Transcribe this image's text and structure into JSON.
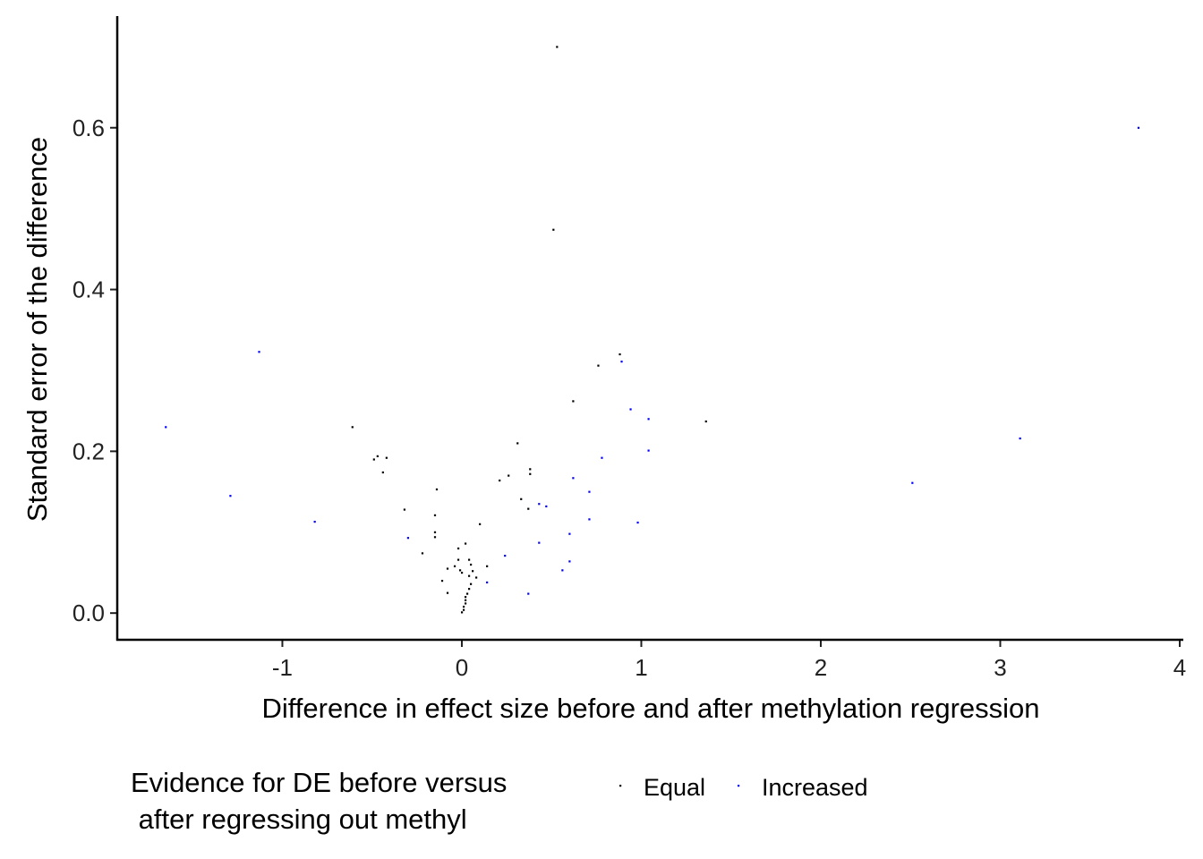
{
  "chart_data": {
    "type": "scatter",
    "title": "",
    "xlabel": "Difference in effect size before and after methylation regression",
    "ylabel": "Standard error of the difference",
    "xlim": [
      -1.92,
      4.02
    ],
    "ylim": [
      -0.033,
      0.738
    ],
    "x_ticks": [
      -1,
      0,
      1,
      2,
      3,
      4
    ],
    "x_tick_labels": [
      "-1",
      "0",
      "1",
      "2",
      "3",
      "4"
    ],
    "y_ticks": [
      0.0,
      0.2,
      0.4,
      0.6
    ],
    "y_tick_labels": [
      "0.0",
      "0.2",
      "0.4",
      "0.6"
    ],
    "grid": false,
    "legend": {
      "placement": "bottom",
      "title_lines": [
        "Evidence for DE before versus",
        " after regressing out methyl"
      ]
    },
    "series": [
      {
        "name": "Equal",
        "color": "#000000",
        "points": [
          [
            0.53,
            0.7
          ],
          [
            0.51,
            0.474
          ],
          [
            0.88,
            0.32
          ],
          [
            0.76,
            0.306
          ],
          [
            0.62,
            0.262
          ],
          [
            1.36,
            0.237
          ],
          [
            -0.61,
            0.23
          ],
          [
            0.31,
            0.21
          ],
          [
            -0.47,
            0.194
          ],
          [
            -0.49,
            0.19
          ],
          [
            -0.42,
            0.192
          ],
          [
            -0.44,
            0.174
          ],
          [
            0.38,
            0.178
          ],
          [
            0.38,
            0.172
          ],
          [
            0.26,
            0.17
          ],
          [
            0.21,
            0.164
          ],
          [
            -0.14,
            0.153
          ],
          [
            0.33,
            0.141
          ],
          [
            0.37,
            0.129
          ],
          [
            -0.32,
            0.128
          ],
          [
            -0.15,
            0.121
          ],
          [
            0.1,
            0.11
          ],
          [
            -0.15,
            0.1
          ],
          [
            -0.15,
            0.094
          ],
          [
            -0.22,
            0.074
          ],
          [
            -0.02,
            0.08
          ],
          [
            0.02,
            0.086
          ],
          [
            -0.02,
            0.066
          ],
          [
            0.04,
            0.066
          ],
          [
            0.05,
            0.06
          ],
          [
            0.14,
            0.058
          ],
          [
            -0.08,
            0.055
          ],
          [
            -0.04,
            0.058
          ],
          [
            -0.01,
            0.053
          ],
          [
            0.06,
            0.052
          ],
          [
            0.0,
            0.05
          ],
          [
            0.04,
            0.046
          ],
          [
            0.08,
            0.044
          ],
          [
            -0.11,
            0.04
          ],
          [
            0.05,
            0.036
          ],
          [
            0.04,
            0.03
          ],
          [
            0.03,
            0.024
          ],
          [
            -0.08,
            0.025
          ],
          [
            0.02,
            0.02
          ],
          [
            0.02,
            0.016
          ],
          [
            0.02,
            0.012
          ],
          [
            0.01,
            0.008
          ],
          [
            0.01,
            0.004
          ],
          [
            0.0,
            0.001
          ]
        ]
      },
      {
        "name": "Increased",
        "color": "#0000ff",
        "points": [
          [
            3.77,
            0.6
          ],
          [
            -1.13,
            0.323
          ],
          [
            0.89,
            0.311
          ],
          [
            0.94,
            0.252
          ],
          [
            1.04,
            0.24
          ],
          [
            -1.65,
            0.23
          ],
          [
            3.11,
            0.216
          ],
          [
            1.04,
            0.201
          ],
          [
            0.78,
            0.192
          ],
          [
            2.51,
            0.161
          ],
          [
            0.62,
            0.167
          ],
          [
            0.71,
            0.15
          ],
          [
            -1.29,
            0.145
          ],
          [
            0.43,
            0.135
          ],
          [
            0.47,
            0.132
          ],
          [
            -0.82,
            0.113
          ],
          [
            0.98,
            0.112
          ],
          [
            0.71,
            0.116
          ],
          [
            0.6,
            0.098
          ],
          [
            -0.3,
            0.093
          ],
          [
            0.43,
            0.087
          ],
          [
            0.24,
            0.071
          ],
          [
            0.6,
            0.064
          ],
          [
            0.56,
            0.053
          ],
          [
            0.14,
            0.038
          ],
          [
            0.37,
            0.024
          ]
        ]
      }
    ]
  }
}
